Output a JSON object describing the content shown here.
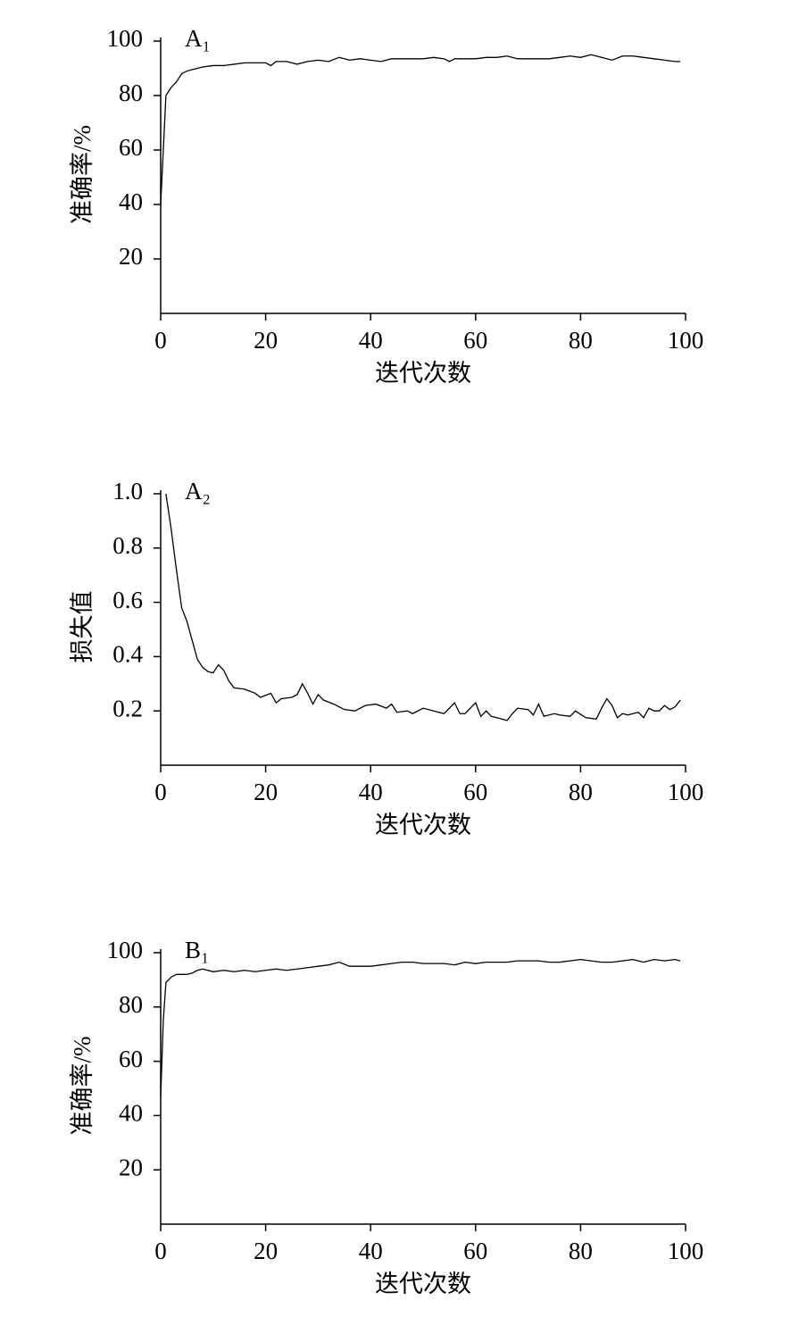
{
  "chart_data": [
    {
      "type": "line",
      "panel_label": "A₁",
      "ylabel": "准确率/%",
      "xlabel": "迭代次数",
      "color": "#000000",
      "xlim": [
        0,
        100
      ],
      "xticks": [
        0,
        20,
        40,
        60,
        80,
        100
      ],
      "ylim": [
        0,
        100
      ],
      "yticks": [
        20,
        40,
        60,
        80,
        100
      ],
      "grid": false,
      "x": [
        0,
        1,
        2,
        3,
        4,
        5,
        6,
        7,
        8,
        10,
        12,
        14,
        16,
        18,
        20,
        21,
        22,
        24,
        26,
        28,
        30,
        32,
        34,
        36,
        38,
        40,
        42,
        44,
        46,
        48,
        50,
        52,
        54,
        55,
        56,
        58,
        60,
        62,
        64,
        66,
        68,
        70,
        72,
        74,
        76,
        78,
        80,
        82,
        84,
        86,
        88,
        90,
        92,
        94,
        96,
        98,
        99
      ],
      "values": [
        40,
        80,
        83,
        85,
        88,
        89,
        89.5,
        90,
        90.5,
        91,
        91,
        91.5,
        92,
        92,
        92,
        91,
        92.5,
        92.5,
        91.5,
        92.5,
        93,
        92.5,
        94,
        93,
        93.5,
        93,
        92.5,
        93.5,
        93.5,
        93.5,
        93.5,
        94,
        93.5,
        92.5,
        93.5,
        93.5,
        93.5,
        94,
        94,
        94.5,
        93.5,
        93.5,
        93.5,
        93.5,
        94,
        94.5,
        94,
        95,
        94,
        93,
        94.5,
        94.5,
        94,
        93.5,
        93,
        92.5,
        92.5
      ]
    },
    {
      "type": "line",
      "panel_label": "A₂",
      "ylabel": "损失值",
      "xlabel": "迭代次数",
      "color": "#000000",
      "xlim": [
        0,
        100
      ],
      "xticks": [
        0,
        20,
        40,
        60,
        80,
        100
      ],
      "ylim": [
        0,
        1
      ],
      "yticks": [
        0.2,
        0.4,
        0.6,
        0.8,
        {
          "value": 1,
          "label": "1.0"
        }
      ],
      "grid": false,
      "x": [
        1,
        2,
        3,
        4,
        5,
        6,
        7,
        8,
        9,
        10,
        11,
        12,
        13,
        14,
        16,
        18,
        19,
        21,
        22,
        23,
        25,
        26,
        27,
        28,
        29,
        30,
        31,
        33,
        35,
        37,
        39,
        41,
        43,
        44,
        45,
        47,
        48,
        50,
        52,
        54,
        56,
        57,
        58,
        60,
        61,
        62,
        63,
        64,
        66,
        67,
        68,
        70,
        71,
        72,
        73,
        75,
        76,
        78,
        79,
        81,
        83,
        84,
        85,
        86,
        87,
        88,
        89,
        91,
        92,
        93,
        94,
        95,
        96,
        97,
        98,
        99
      ],
      "values": [
        1,
        0.87,
        0.72,
        0.58,
        0.53,
        0.46,
        0.39,
        0.36,
        0.345,
        0.34,
        0.37,
        0.35,
        0.31,
        0.285,
        0.28,
        0.265,
        0.25,
        0.265,
        0.23,
        0.245,
        0.25,
        0.26,
        0.3,
        0.265,
        0.225,
        0.26,
        0.24,
        0.225,
        0.205,
        0.2,
        0.22,
        0.225,
        0.21,
        0.225,
        0.195,
        0.2,
        0.19,
        0.21,
        0.2,
        0.19,
        0.23,
        0.19,
        0.19,
        0.23,
        0.18,
        0.2,
        0.18,
        0.175,
        0.165,
        0.19,
        0.21,
        0.205,
        0.185,
        0.225,
        0.18,
        0.19,
        0.185,
        0.18,
        0.2,
        0.175,
        0.17,
        0.21,
        0.245,
        0.22,
        0.175,
        0.19,
        0.185,
        0.195,
        0.175,
        0.21,
        0.2,
        0.2,
        0.22,
        0.205,
        0.215,
        0.24
      ]
    },
    {
      "type": "line",
      "panel_label": "B₁",
      "ylabel": "准确率/%",
      "xlabel": "迭代次数",
      "color": "#000000",
      "xlim": [
        0,
        100
      ],
      "xticks": [
        0,
        20,
        40,
        60,
        80,
        100
      ],
      "ylim": [
        0,
        100
      ],
      "yticks": [
        20,
        40,
        60,
        80,
        100
      ],
      "grid": false,
      "x": [
        0,
        0.5,
        1,
        2,
        3,
        5,
        6,
        7,
        8,
        10,
        12,
        14,
        16,
        18,
        20,
        22,
        24,
        26,
        28,
        30,
        32,
        34,
        36,
        38,
        40,
        42,
        44,
        46,
        48,
        50,
        52,
        54,
        56,
        58,
        60,
        62,
        64,
        66,
        68,
        70,
        72,
        74,
        76,
        78,
        80,
        82,
        84,
        86,
        88,
        90,
        92,
        94,
        96,
        98,
        99
      ],
      "values": [
        47,
        75,
        89,
        91,
        92,
        92,
        92.5,
        93.5,
        94,
        93,
        93.5,
        93,
        93.5,
        93,
        93.5,
        94,
        93.5,
        94,
        94.5,
        95,
        95.5,
        96.5,
        95,
        95,
        95,
        95.5,
        96,
        96.5,
        96.5,
        96,
        96,
        96,
        95.5,
        96.5,
        96,
        96.5,
        96.5,
        96.5,
        97,
        97,
        97,
        96.5,
        96.5,
        97,
        97.5,
        97,
        96.5,
        96.5,
        97,
        97.5,
        96.5,
        97.5,
        97,
        97.5,
        97
      ]
    }
  ]
}
